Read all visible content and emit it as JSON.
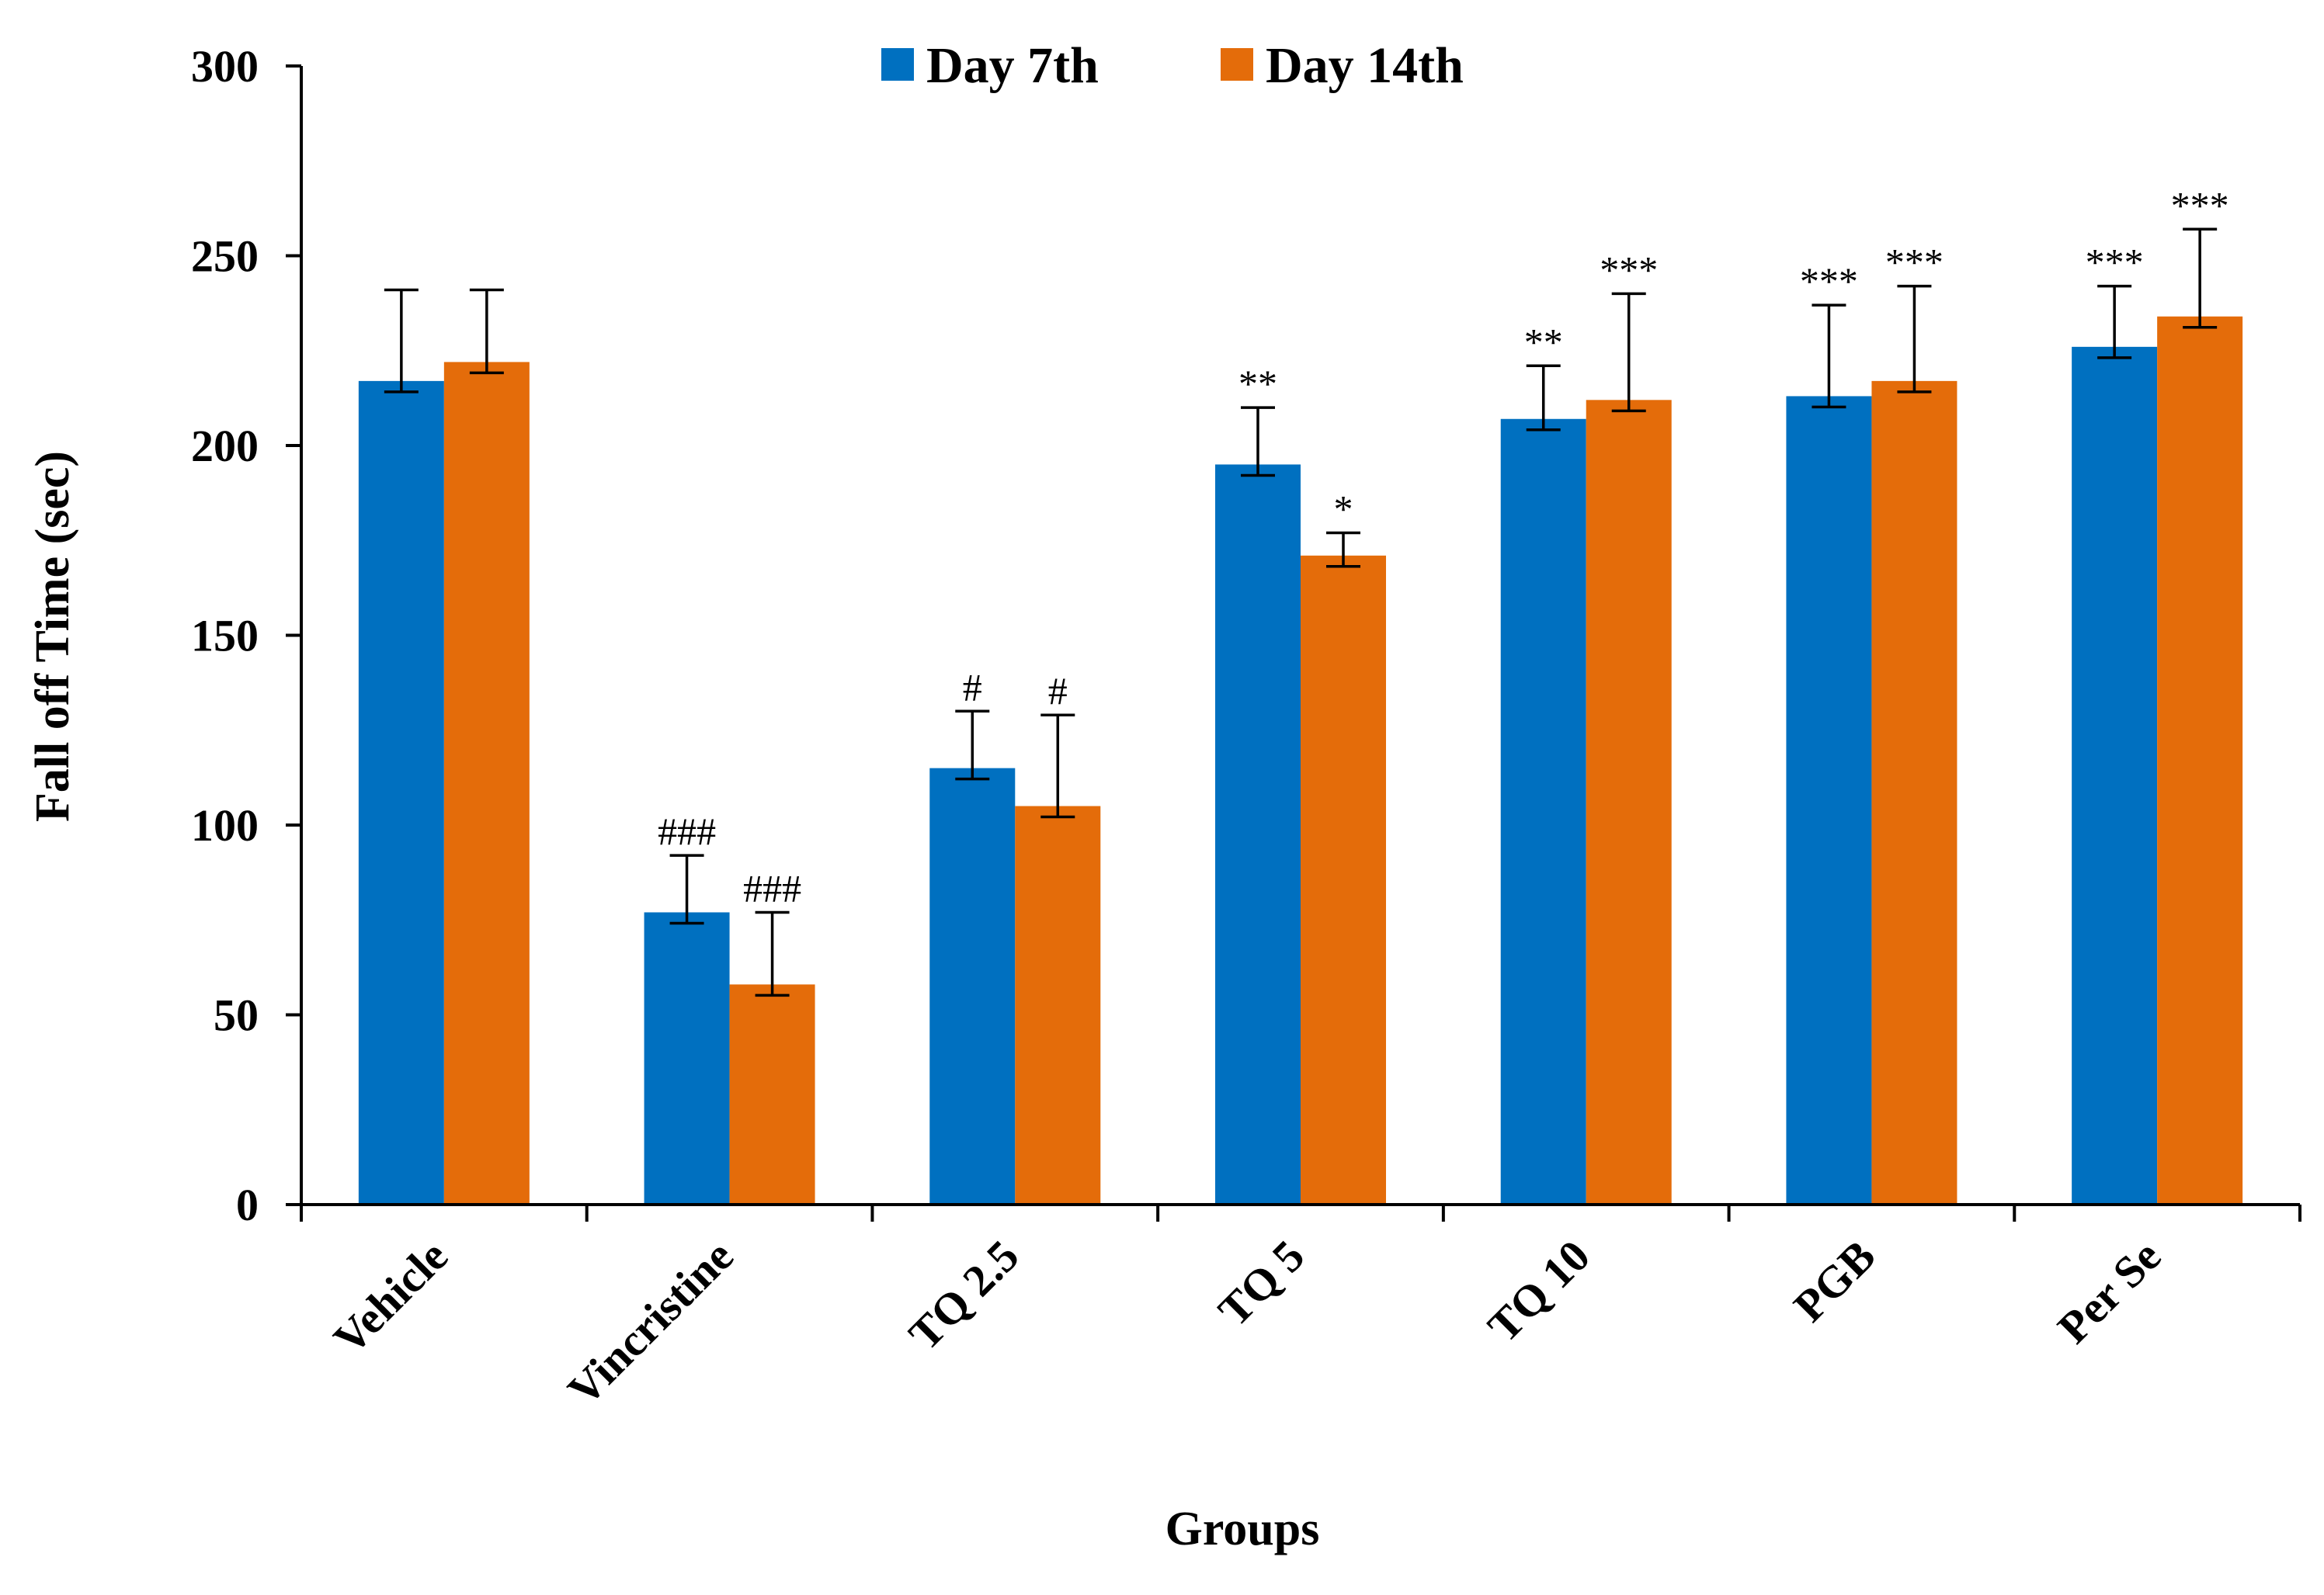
{
  "chart_data": {
    "type": "bar",
    "title": "",
    "xlabel": "Groups",
    "ylabel": "Fall off Time (sec)",
    "ylim": [
      0,
      300
    ],
    "yticks": [
      "0",
      "50",
      "100",
      "150",
      "200",
      "250",
      "300"
    ],
    "categories": [
      "Vehicle",
      "Vincristine",
      "TQ 2.5",
      "TQ 5",
      "TQ 10",
      "PGB",
      "Per Se"
    ],
    "legend_position": "top-center",
    "series": [
      {
        "name": "Day 7th",
        "color": "#0070C0",
        "values": [
          217,
          77,
          115,
          195,
          207,
          213,
          226
        ],
        "errors": [
          24,
          15,
          15,
          15,
          14,
          24,
          16
        ],
        "annotations": [
          "",
          "###",
          "#",
          "**",
          "**",
          "***",
          "***"
        ]
      },
      {
        "name": "Day 14th",
        "color": "#E46C0A",
        "values": [
          222,
          58,
          105,
          171,
          212,
          217,
          234
        ],
        "errors": [
          19,
          19,
          24,
          6,
          28,
          25,
          23
        ],
        "annotations": [
          "",
          "###",
          "#",
          "*",
          "***",
          "***",
          "***"
        ]
      }
    ]
  }
}
